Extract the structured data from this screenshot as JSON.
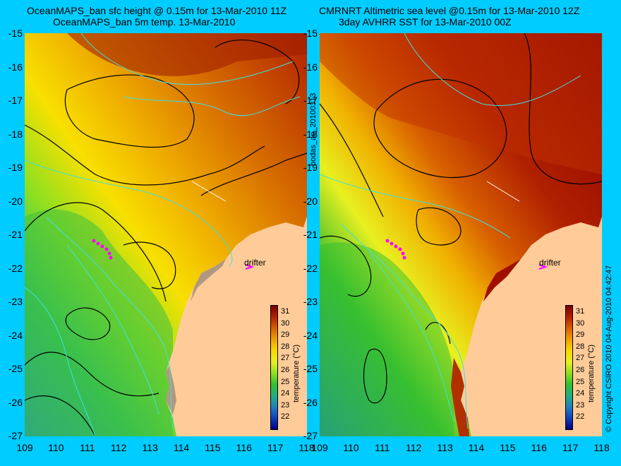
{
  "left_panel": {
    "title_line1": "OceanMAPS_ban sfc height @ 0.15m for 13-Mar-2010 11Z",
    "title_line2": "OceanMAPS_ban 5m temp. 13-Mar-2010",
    "drifter_label": "drifter"
  },
  "right_panel": {
    "title_line1": "CMRNRT Altimetric sea level  @0.15m  for 13-Mar-2010 12Z",
    "title_line2": "3day AVHRR SST for 13-Mar-2010 00Z",
    "drifter_label": "drifter"
  },
  "side_label": "bodas_an_20100313",
  "copyright": "© Copyright CSIRO 2010  04-Aug-2010 04:42:47",
  "colorbar": {
    "label": "temperature (°C)",
    "ticks": [
      "31",
      "30",
      "29",
      "28",
      "27",
      "26",
      "25",
      "24",
      "23",
      "22"
    ],
    "colors": [
      "#7a0000",
      "#b02000",
      "#d86000",
      "#f0a000",
      "#f8d800",
      "#e8f020",
      "#90e020",
      "#30c030",
      "#20b080",
      "#2080c0",
      "#1040c0",
      "#000080"
    ]
  },
  "axes": {
    "y_ticks": [
      "-15",
      "-16",
      "-17",
      "-18",
      "-19",
      "-20",
      "-21",
      "-22",
      "-23",
      "-24",
      "-25",
      "-26",
      "-27"
    ],
    "x_ticks": [
      "109",
      "110",
      "111",
      "112",
      "113",
      "114",
      "115",
      "116",
      "117",
      "118"
    ]
  },
  "colors": {
    "background": "#00CCFF",
    "land": "#FFCC99"
  }
}
